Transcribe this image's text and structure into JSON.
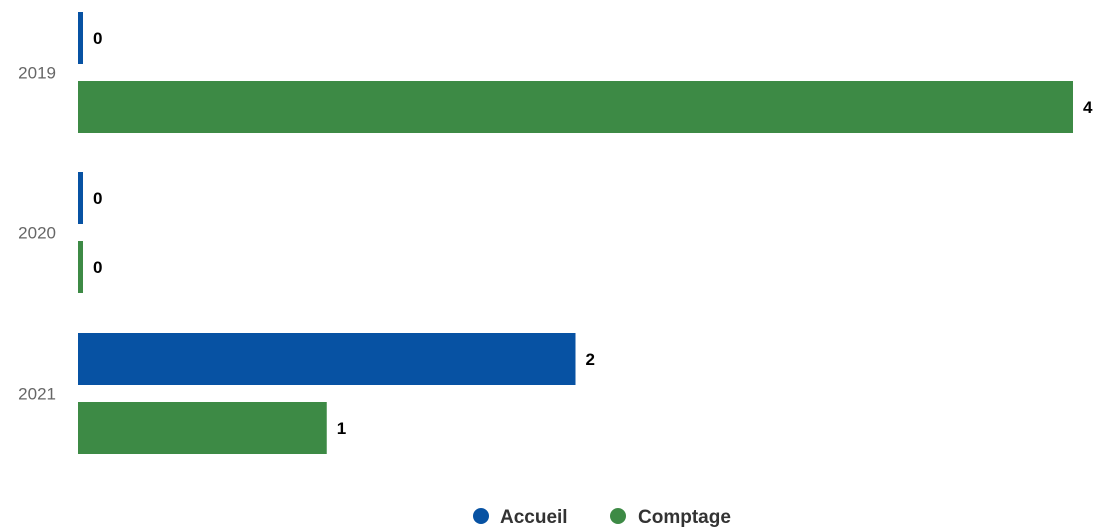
{
  "chart_data": {
    "type": "bar",
    "orientation": "horizontal",
    "categories": [
      "2019",
      "2020",
      "2021"
    ],
    "series": [
      {
        "name": "Accueil",
        "color": "#0752a3",
        "values": [
          0,
          0,
          2
        ]
      },
      {
        "name": "Comptage",
        "color": "#3d8a45",
        "values": [
          4,
          0,
          1
        ]
      }
    ],
    "xlim": [
      0,
      4
    ],
    "grid": false,
    "data_labels": true,
    "legend": "bottom-center",
    "title": "",
    "xlabel": "",
    "ylabel": ""
  }
}
